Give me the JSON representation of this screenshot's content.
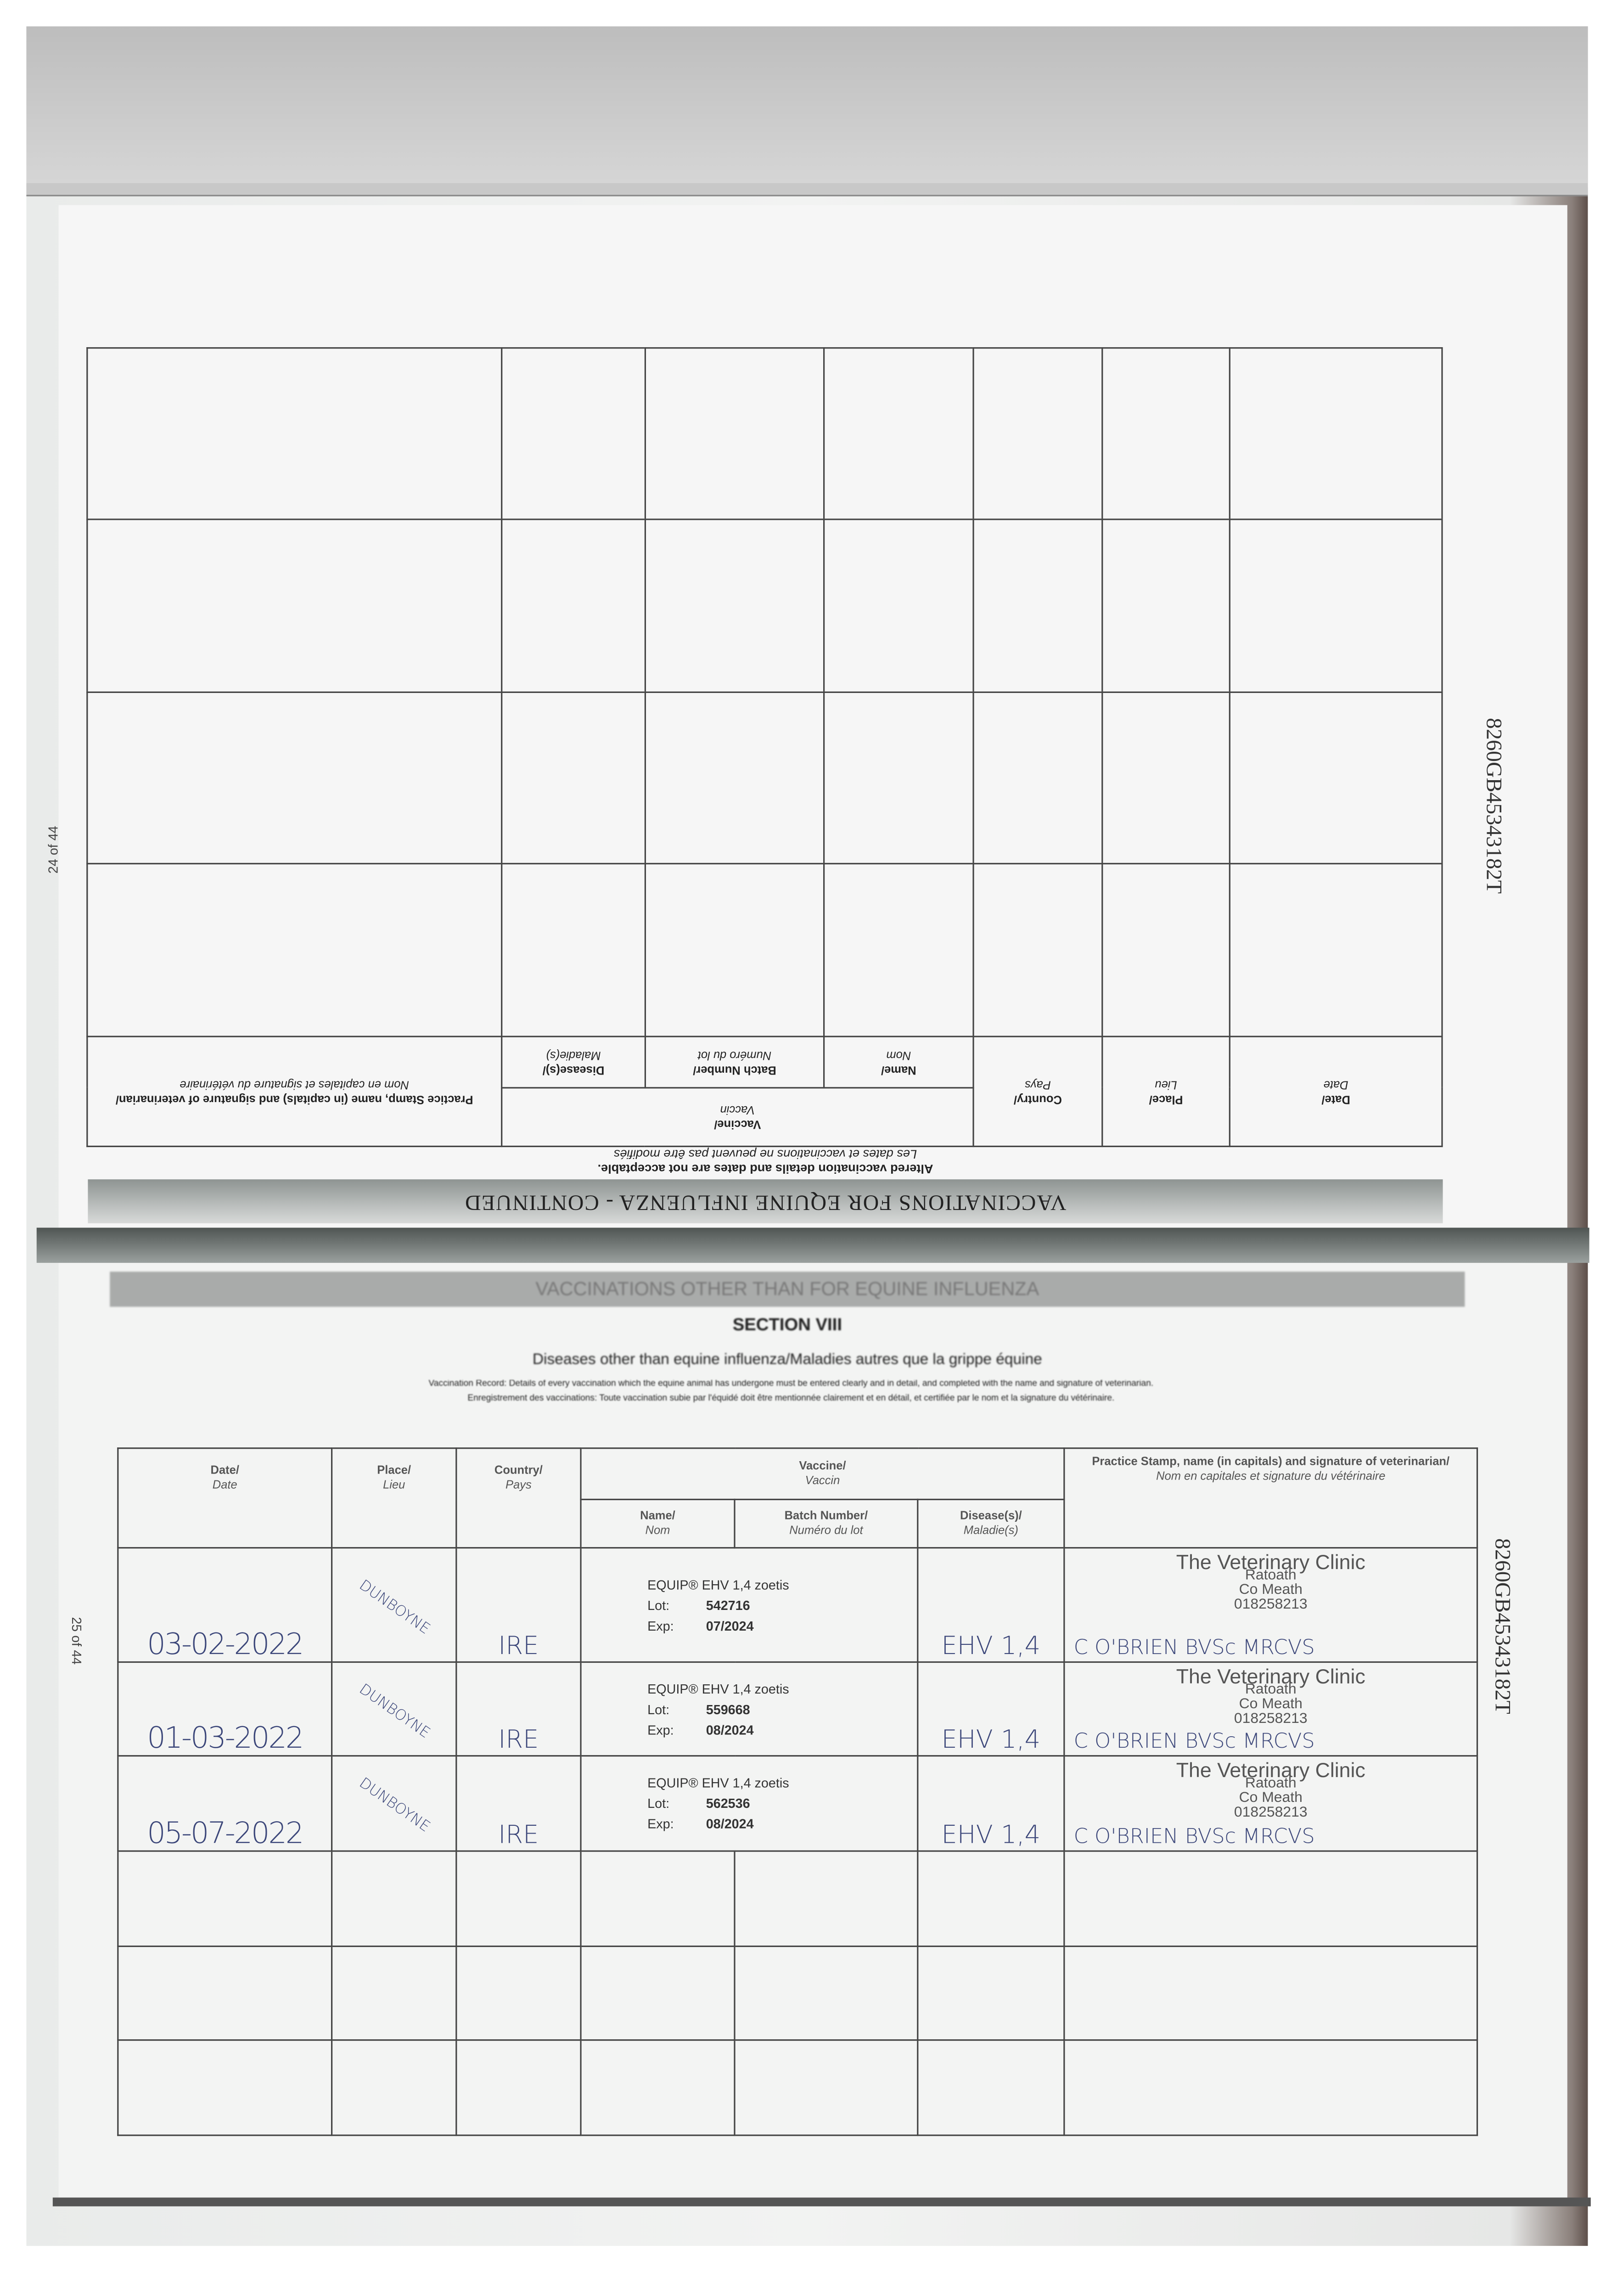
{
  "upper_page": {
    "title": "VACCINATIONS FOR EQUINE INFLUENZA - CONTINUED",
    "notice": "Altered vaccination details and dates are not acceptable.",
    "notice_fr": "Les dates et vaccinations ne peuvent pas être modifiés",
    "headers": {
      "date": "Date/",
      "date_fr": "Date",
      "place": "Place/",
      "place_fr": "Lieu",
      "country": "Country/",
      "country_fr": "Pays",
      "vaccine": "Vaccine/",
      "vaccine_fr": "Vaccin",
      "name": "Name/",
      "name_fr": "Nom",
      "batch": "Batch Number/",
      "batch_fr": "Numéro du lot",
      "diseases": "Disease(s)/",
      "diseases_fr": "Maladie(s)",
      "stamp": "Practice Stamp, name (in capitals) and signature of veterinarian/",
      "stamp_fr": "Nom en capitales et signature du vétérinaire"
    },
    "page_number": "24 of 44"
  },
  "lower_page": {
    "banner": "VACCINATIONS OTHER THAN FOR EQUINE INFLUENZA",
    "section": "SECTION VIII",
    "subtitle": "Diseases other than equine influenza/Maladies autres que la grippe équine",
    "description": "Vaccination Record: Details of every vaccination which the equine animal has undergone must be entered clearly and in detail, and completed with the name and signature of veterinarian.",
    "description_fr": "Enregistrement des vaccinations: Toute vaccination subie par l'équidé doit être mentionnée clairement et en détail, et certifiée par le nom et la signature du vétérinaire.",
    "headers": {
      "date": "Date/",
      "date_fr": "Date",
      "place": "Place/",
      "place_fr": "Lieu",
      "country": "Country/",
      "country_fr": "Pays",
      "vaccine": "Vaccine/",
      "vaccine_fr": "Vaccin",
      "name": "Name/",
      "name_fr": "Nom",
      "batch": "Batch Number/",
      "batch_fr": "Numéro du lot",
      "diseases": "Disease(s)/",
      "diseases_fr": "Maladie(s)",
      "stamp": "Practice Stamp, name (in capitals) and signature of veterinarian/",
      "stamp_fr": "Nom en capitales et signature du vétérinaire"
    },
    "rows": [
      {
        "date": "03-02-2022",
        "place": "DUNBOYNE",
        "country": "IRE",
        "vaccine": "EQUIP® EHV 1,4 zoetis",
        "lot_label": "Lot:",
        "lot": "542716",
        "exp_label": "Exp:",
        "exp": "07/2024",
        "diseases": "EHV 1,4",
        "clinic": "The Veterinary Clinic",
        "town": "Ratoath",
        "county": "Co Meath",
        "phone": "018258213",
        "vet": "C O'BRIEN BVSc MRCVS"
      },
      {
        "date": "01-03-2022",
        "place": "DUNBOYNE",
        "country": "IRE",
        "vaccine": "EQUIP® EHV 1,4 zoetis",
        "lot_label": "Lot:",
        "lot": "559668",
        "exp_label": "Exp:",
        "exp": "08/2024",
        "diseases": "EHV 1,4",
        "clinic": "The Veterinary Clinic",
        "town": "Ratoath",
        "county": "Co Meath",
        "phone": "018258213",
        "vet": "C O'BRIEN BVSc MRCVS"
      },
      {
        "date": "05-07-2022",
        "place": "DUNBOYNE",
        "country": "IRE",
        "vaccine": "EQUIP® EHV 1,4 zoetis",
        "lot_label": "Lot:",
        "lot": "562536",
        "exp_label": "Exp:",
        "exp": "08/2024",
        "diseases": "EHV 1,4",
        "clinic": "The Veterinary Clinic",
        "town": "Ratoath",
        "county": "Co Meath",
        "phone": "018258213",
        "vet": "C O'BRIEN BVSc MRCVS"
      }
    ],
    "page_number": "25 of 44"
  },
  "passport_id": "8260GB45343182T"
}
